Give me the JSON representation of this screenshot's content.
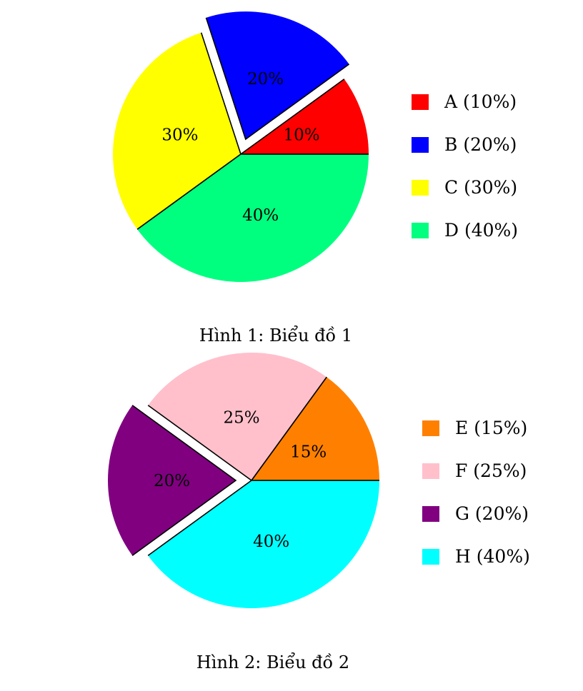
{
  "chart_data": [
    {
      "type": "pie",
      "caption": "Hình 1: Biểu đồ 1",
      "exploded": "B",
      "slices": [
        {
          "name": "A",
          "value": 10,
          "label": "10%",
          "legend": "A (10%)",
          "color": "#ff0000"
        },
        {
          "name": "B",
          "value": 20,
          "label": "20%",
          "legend": "B (20%)",
          "color": "#0000ff"
        },
        {
          "name": "C",
          "value": 30,
          "label": "30%",
          "legend": "C (30%)",
          "color": "#ffff00"
        },
        {
          "name": "D",
          "value": 40,
          "label": "40%",
          "legend": "D (40%)",
          "color": "#00ff7f"
        }
      ]
    },
    {
      "type": "pie",
      "caption": "Hình 2: Biểu đồ 2",
      "exploded": "G",
      "slices": [
        {
          "name": "E",
          "value": 15,
          "label": "15%",
          "legend": "E (15%)",
          "color": "#ff8000"
        },
        {
          "name": "F",
          "value": 25,
          "label": "25%",
          "legend": "F (25%)",
          "color": "#ffc0cb"
        },
        {
          "name": "G",
          "value": 20,
          "label": "20%",
          "legend": "G (20%)",
          "color": "#800080"
        },
        {
          "name": "H",
          "value": 40,
          "label": "40%",
          "legend": "H (40%)",
          "color": "#00ffff"
        }
      ]
    }
  ]
}
